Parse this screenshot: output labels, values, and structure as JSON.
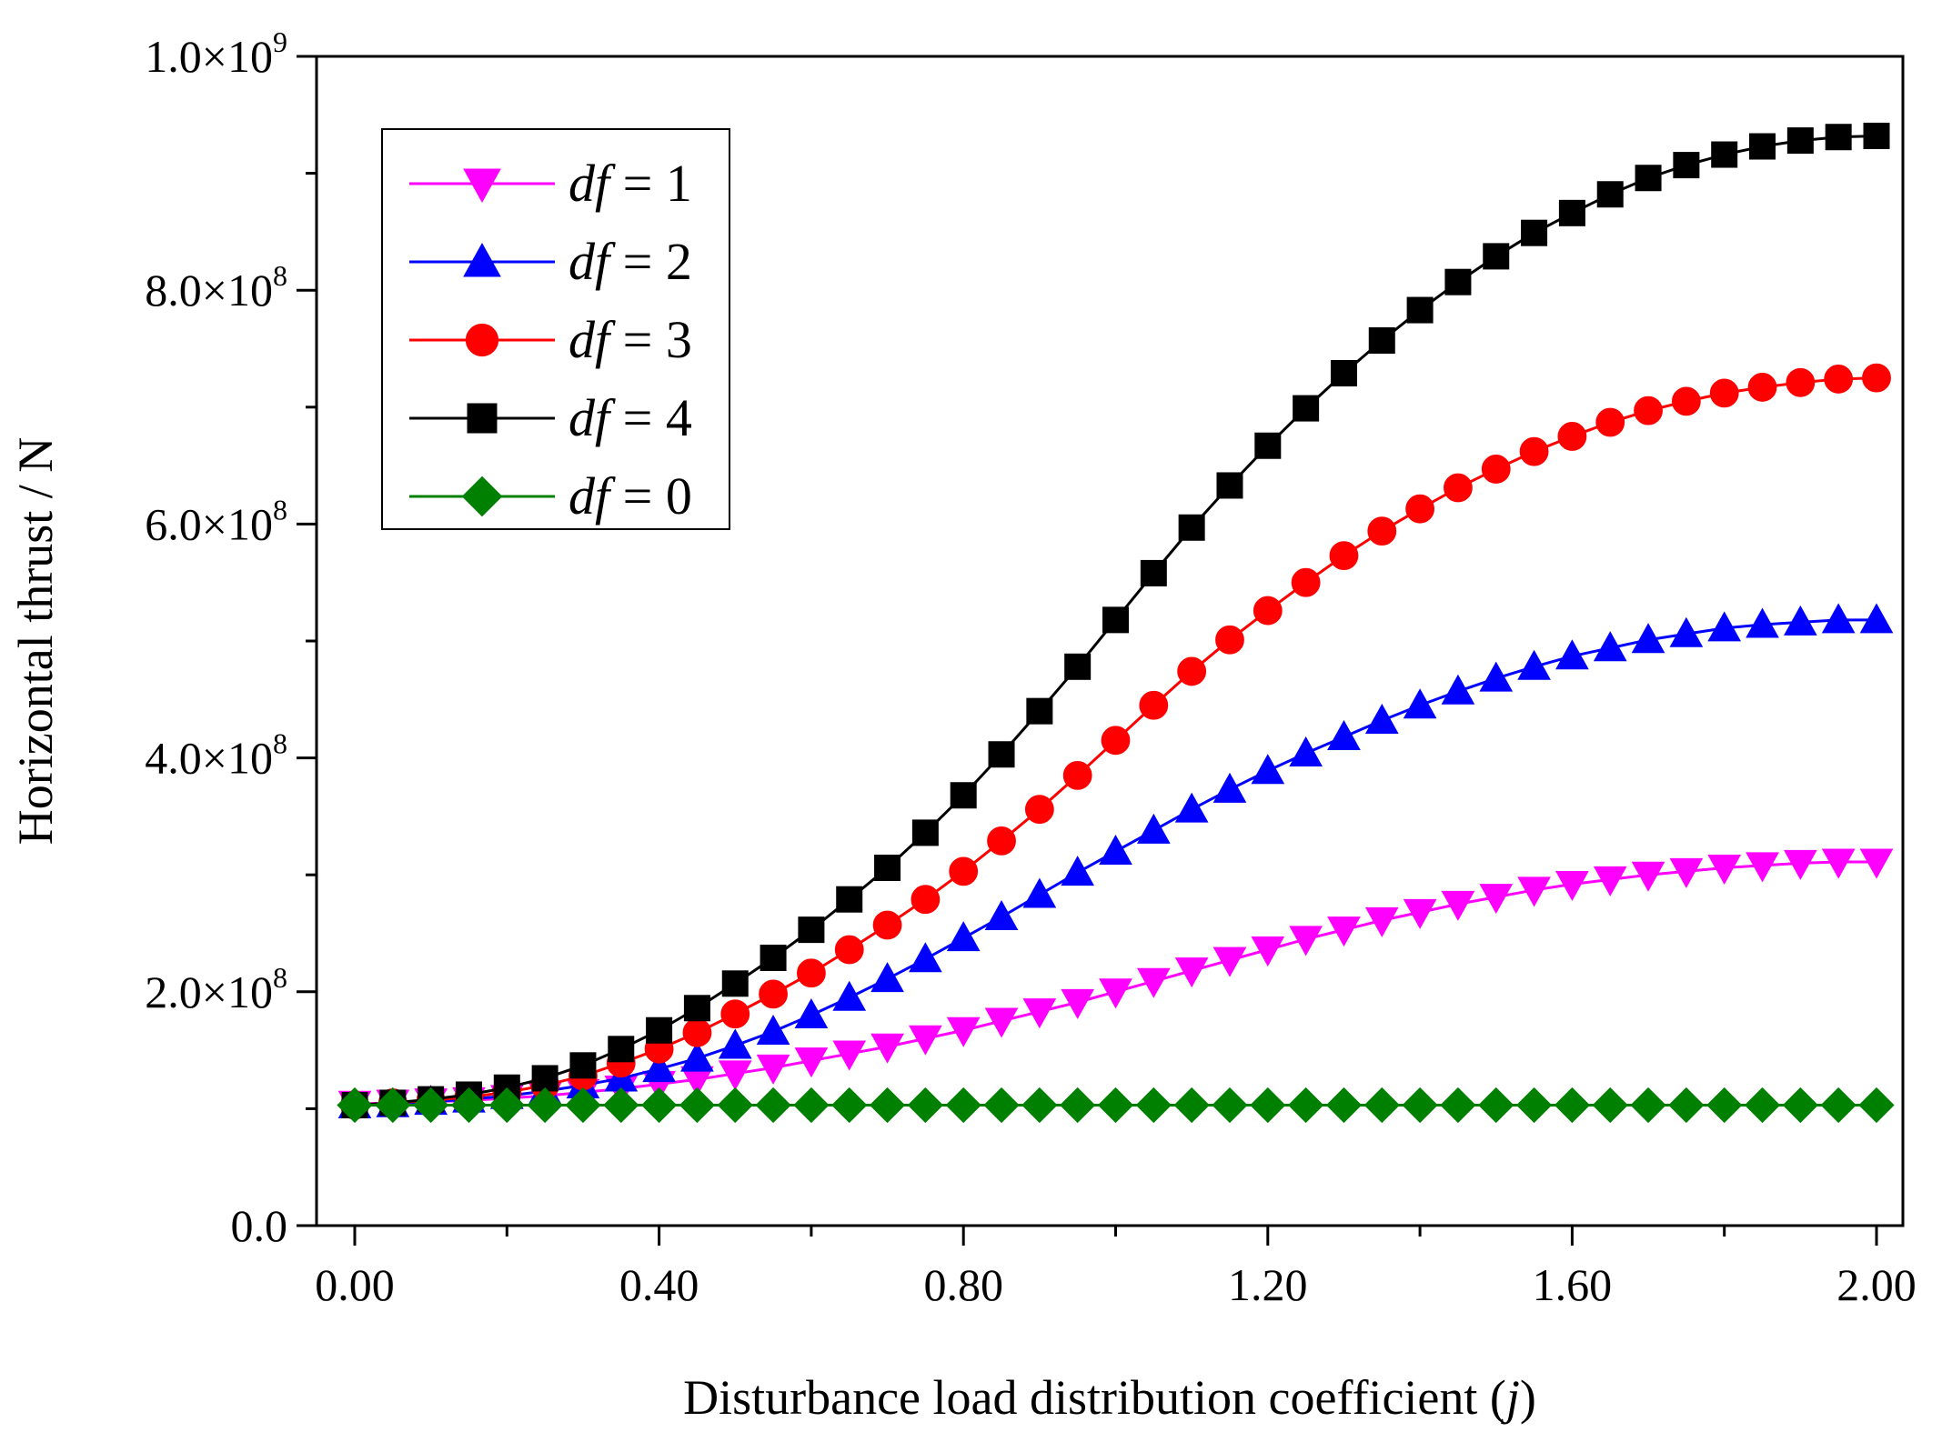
{
  "chart_data": {
    "type": "line",
    "xlabel_prefix": "Disturbance load distribution coefficient (",
    "xlabel_var": "j",
    "xlabel_suffix": ")",
    "ylabel": "Horizontal thrust / N",
    "xlim": [
      0,
      2
    ],
    "ylim": [
      0,
      1000000000
    ],
    "x_ticks": [
      0,
      0.4,
      0.8,
      1.2,
      1.6,
      2.0
    ],
    "x_tick_labels": [
      "0.00",
      "0.40",
      "0.80",
      "1.20",
      "1.60",
      "2.00"
    ],
    "y_ticks": [
      0,
      200000000,
      400000000,
      600000000,
      800000000,
      1000000000
    ],
    "y_tick_labels": [
      {
        "mant": "0.0",
        "exp": ""
      },
      {
        "mant": "2.0×10",
        "exp": "8"
      },
      {
        "mant": "4.0×10",
        "exp": "8"
      },
      {
        "mant": "6.0×10",
        "exp": "8"
      },
      {
        "mant": "8.0×10",
        "exp": "8"
      },
      {
        "mant": "1.0×10",
        "exp": "9"
      }
    ],
    "grid": false,
    "legend_position": "top-left",
    "x": [
      0,
      0.05,
      0.1,
      0.15,
      0.2,
      0.25,
      0.3,
      0.35,
      0.4,
      0.45,
      0.5,
      0.55,
      0.6,
      0.65,
      0.7,
      0.75,
      0.8,
      0.85,
      0.9,
      0.95,
      1.0,
      1.05,
      1.1,
      1.15,
      1.2,
      1.25,
      1.3,
      1.35,
      1.4,
      1.45,
      1.5,
      1.55,
      1.6,
      1.65,
      1.7,
      1.75,
      1.8,
      1.85,
      1.9,
      1.95,
      2.0
    ],
    "series": [
      {
        "name_var": "df",
        "name_rest": " = 1",
        "marker": "triangle-down",
        "color": "#ff00ff",
        "values": [
          104000000,
          105000000,
          106000000,
          107000000,
          109000000,
          111000000,
          114000000,
          117000000,
          121000000,
          125000000,
          130000000,
          135000000,
          141000000,
          147000000,
          153000000,
          160000000,
          167000000,
          175000000,
          183000000,
          191000000,
          200000000,
          209000000,
          218000000,
          227000000,
          236000000,
          245000000,
          253000000,
          261000000,
          268000000,
          275000000,
          281000000,
          287000000,
          292000000,
          296000000,
          300000000,
          303000000,
          306000000,
          308000000,
          310000000,
          311000000,
          311000000
        ]
      },
      {
        "name_var": "df",
        "name_rest": " = 2",
        "marker": "triangle-up",
        "color": "#0000ff",
        "values": [
          103000000,
          104000000,
          106000000,
          108000000,
          111000000,
          115000000,
          120000000,
          126000000,
          134000000,
          143000000,
          154000000,
          166000000,
          180000000,
          195000000,
          211000000,
          228000000,
          246000000,
          264000000,
          283000000,
          302000000,
          320000000,
          338000000,
          356000000,
          373000000,
          389000000,
          404000000,
          418000000,
          432000000,
          445000000,
          457000000,
          468000000,
          478000000,
          487000000,
          494000000,
          501000000,
          506000000,
          511000000,
          514000000,
          516000000,
          518000000,
          518000000
        ]
      },
      {
        "name_var": "df",
        "name_rest": " = 3",
        "marker": "circle",
        "color": "#ff0000",
        "values": [
          103000000,
          105000000,
          107000000,
          110000000,
          114000000,
          120000000,
          128000000,
          139000000,
          151000000,
          165000000,
          181000000,
          198000000,
          216000000,
          236000000,
          257000000,
          279000000,
          303000000,
          329000000,
          356000000,
          385000000,
          415000000,
          445000000,
          474000000,
          501000000,
          526000000,
          550000000,
          573000000,
          594000000,
          613000000,
          631000000,
          647000000,
          662000000,
          675000000,
          687000000,
          697000000,
          705000000,
          712000000,
          717000000,
          721000000,
          724000000,
          725000000
        ]
      },
      {
        "name_var": "df",
        "name_rest": " = 4",
        "marker": "square",
        "color": "#000000",
        "values": [
          103000000,
          105000000,
          108000000,
          112000000,
          118000000,
          126000000,
          137000000,
          151000000,
          167000000,
          186000000,
          207000000,
          229000000,
          253000000,
          279000000,
          306000000,
          336000000,
          368000000,
          403000000,
          440000000,
          478000000,
          518000000,
          558000000,
          597000000,
          633000000,
          667000000,
          699000000,
          729000000,
          757000000,
          783000000,
          807000000,
          829000000,
          849000000,
          866000000,
          882000000,
          896000000,
          907000000,
          916000000,
          923000000,
          928000000,
          931000000,
          932000000
        ]
      },
      {
        "name_var": "df",
        "name_rest": " = 0",
        "marker": "diamond",
        "color": "#008000",
        "values": [
          103000000,
          103000000,
          103000000,
          103000000,
          103000000,
          103000000,
          103000000,
          103000000,
          103000000,
          103000000,
          103000000,
          103000000,
          103000000,
          103000000,
          103000000,
          103000000,
          103000000,
          103000000,
          103000000,
          103000000,
          103000000,
          103000000,
          103000000,
          103000000,
          103000000,
          103000000,
          103000000,
          103000000,
          103000000,
          103000000,
          103000000,
          103000000,
          103000000,
          103000000,
          103000000,
          103000000,
          103000000,
          103000000,
          103000000,
          103000000,
          103000000
        ]
      }
    ]
  }
}
